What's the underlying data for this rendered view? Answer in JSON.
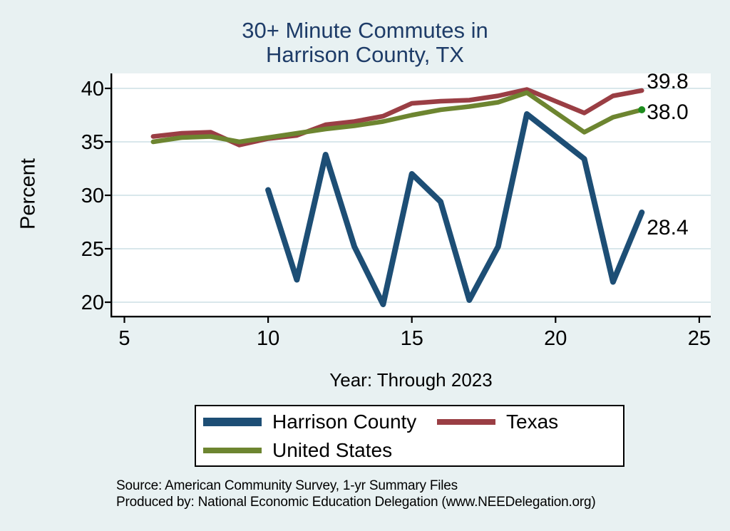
{
  "title": {
    "line1": "30+ Minute Commutes in",
    "line2": "Harrison County, TX"
  },
  "chart_data": {
    "type": "line",
    "title": "30+ Minute Commutes in Harrison County, TX",
    "xlabel": "Year: Through 2023",
    "ylabel": "Percent",
    "x_ticks": [
      5,
      10,
      15,
      20,
      25
    ],
    "y_ticks": [
      20,
      25,
      30,
      35,
      40
    ],
    "xlim": [
      5,
      25
    ],
    "ylim": [
      20,
      40
    ],
    "grid": "horizontal",
    "legend_position": "bottom",
    "series": [
      {
        "name": "Texas",
        "color": "#9a3e44",
        "x": [
          6,
          7,
          8,
          9,
          10,
          11,
          12,
          13,
          14,
          15,
          16,
          17,
          18,
          19,
          21,
          22,
          23
        ],
        "values": [
          35.5,
          35.8,
          35.9,
          34.7,
          35.3,
          35.6,
          36.6,
          36.9,
          37.4,
          38.6,
          38.8,
          38.9,
          39.3,
          39.9,
          37.7,
          39.3,
          39.8
        ],
        "end_label": "39.8"
      },
      {
        "name": "United States",
        "color": "#6d8530",
        "x": [
          6,
          7,
          8,
          9,
          10,
          11,
          12,
          13,
          14,
          15,
          16,
          17,
          18,
          19,
          21,
          22,
          23
        ],
        "values": [
          35.0,
          35.4,
          35.5,
          35.0,
          35.4,
          35.8,
          36.2,
          36.5,
          36.9,
          37.5,
          38.0,
          38.3,
          38.7,
          39.6,
          35.9,
          37.3,
          38.0
        ],
        "end_label": "38.0",
        "end_marker": true,
        "end_marker_color": "#1e8c1e"
      },
      {
        "name": "Harrison County",
        "color": "#1d4e75",
        "x": [
          10,
          11,
          12,
          13,
          14,
          15,
          16,
          17,
          18,
          19,
          21,
          22,
          23
        ],
        "values": [
          30.5,
          22.1,
          33.8,
          25.2,
          19.8,
          32.0,
          29.4,
          20.2,
          25.2,
          37.6,
          33.4,
          21.9,
          28.4
        ],
        "end_label": "28.4"
      }
    ]
  },
  "legend": {
    "items": [
      {
        "label": "Harrison County",
        "color": "#1d4e75"
      },
      {
        "label": "Texas",
        "color": "#9a3e44"
      },
      {
        "label": "United States",
        "color": "#6d8530"
      }
    ]
  },
  "source": {
    "line1": "Source: American Community Survey, 1-yr Summary Files",
    "line2": "Produced by: National Economic Education Delegation (www.NEEDelegation.org)"
  }
}
